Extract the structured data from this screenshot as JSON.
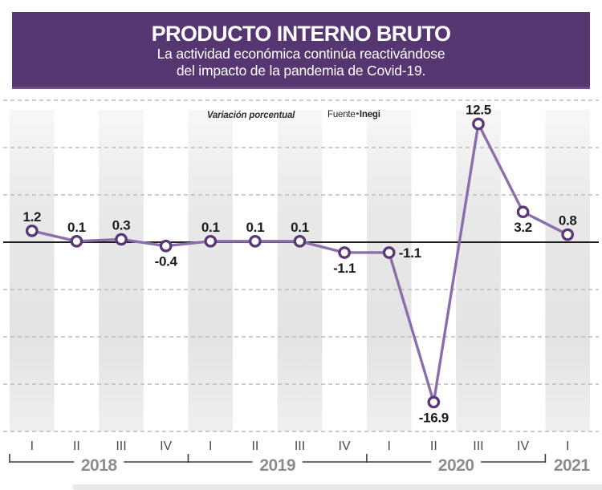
{
  "page": {
    "background": "#ffffff"
  },
  "header": {
    "title": "PRODUCTO INTERNO BRUTO",
    "subtitle_line1": "La actividad económica continúa reactivándose",
    "subtitle_line2": "del impacto de la pandemia de Covid-19.",
    "bg_color": "#563671",
    "text_color": "#ffffff"
  },
  "annotations": {
    "unit_label": "Variación porcentual",
    "source_prefix": "Fuente",
    "source_separator": "•",
    "source_name": "Inegi"
  },
  "chart_data": {
    "type": "line",
    "title": "PRODUCTO INTERNO BRUTO",
    "subtitle": "Variación porcentual",
    "source": "Fuente: Inegi",
    "categories": [
      "I-2018",
      "II-2018",
      "III-2018",
      "IV-2018",
      "I-2019",
      "II-2019",
      "III-2019",
      "IV-2019",
      "I-2020",
      "II-2020",
      "III-2020",
      "IV-2020",
      "I-2021"
    ],
    "x_labels": [
      "I",
      "II",
      "III",
      "IV",
      "I",
      "II",
      "III",
      "IV",
      "I",
      "II",
      "III",
      "IV",
      "I"
    ],
    "year_groups": [
      {
        "label": "2018",
        "start": 0,
        "end": 3
      },
      {
        "label": "2019",
        "start": 4,
        "end": 7
      },
      {
        "label": "2020",
        "start": 8,
        "end": 11
      },
      {
        "label": "2021",
        "start": 12,
        "end": 12
      }
    ],
    "values": [
      1.2,
      0.1,
      0.3,
      -0.4,
      0.1,
      0.1,
      0.1,
      -1.1,
      -1.1,
      -16.9,
      12.5,
      3.2,
      0.8
    ],
    "value_label_pos": [
      "above",
      "above",
      "above",
      "below",
      "above",
      "above",
      "above",
      "below",
      "right",
      "below",
      "above",
      "below",
      "above"
    ],
    "ylim": [
      -20,
      15
    ],
    "gridline_step": 5,
    "grid_on": true,
    "legend": "none",
    "colors": {
      "line": "#8b6fad",
      "point_ring": "#5a3776",
      "point_fill": "#ffffff",
      "zero_line": "#000000",
      "gridline": "#bcbcbc",
      "stripe_top": "#f7f7f7",
      "stripe_mid": "#e9e9e9",
      "stripe_low": "#e3e3e3",
      "stripe_bottom": "#efefef",
      "value_label": "#1c1c1c",
      "quarter_label": "#4a4a4a",
      "year_label": "#8d8d8d",
      "bracket": "#3e3e3e",
      "bottom_strip": "#e9e9e9"
    }
  }
}
